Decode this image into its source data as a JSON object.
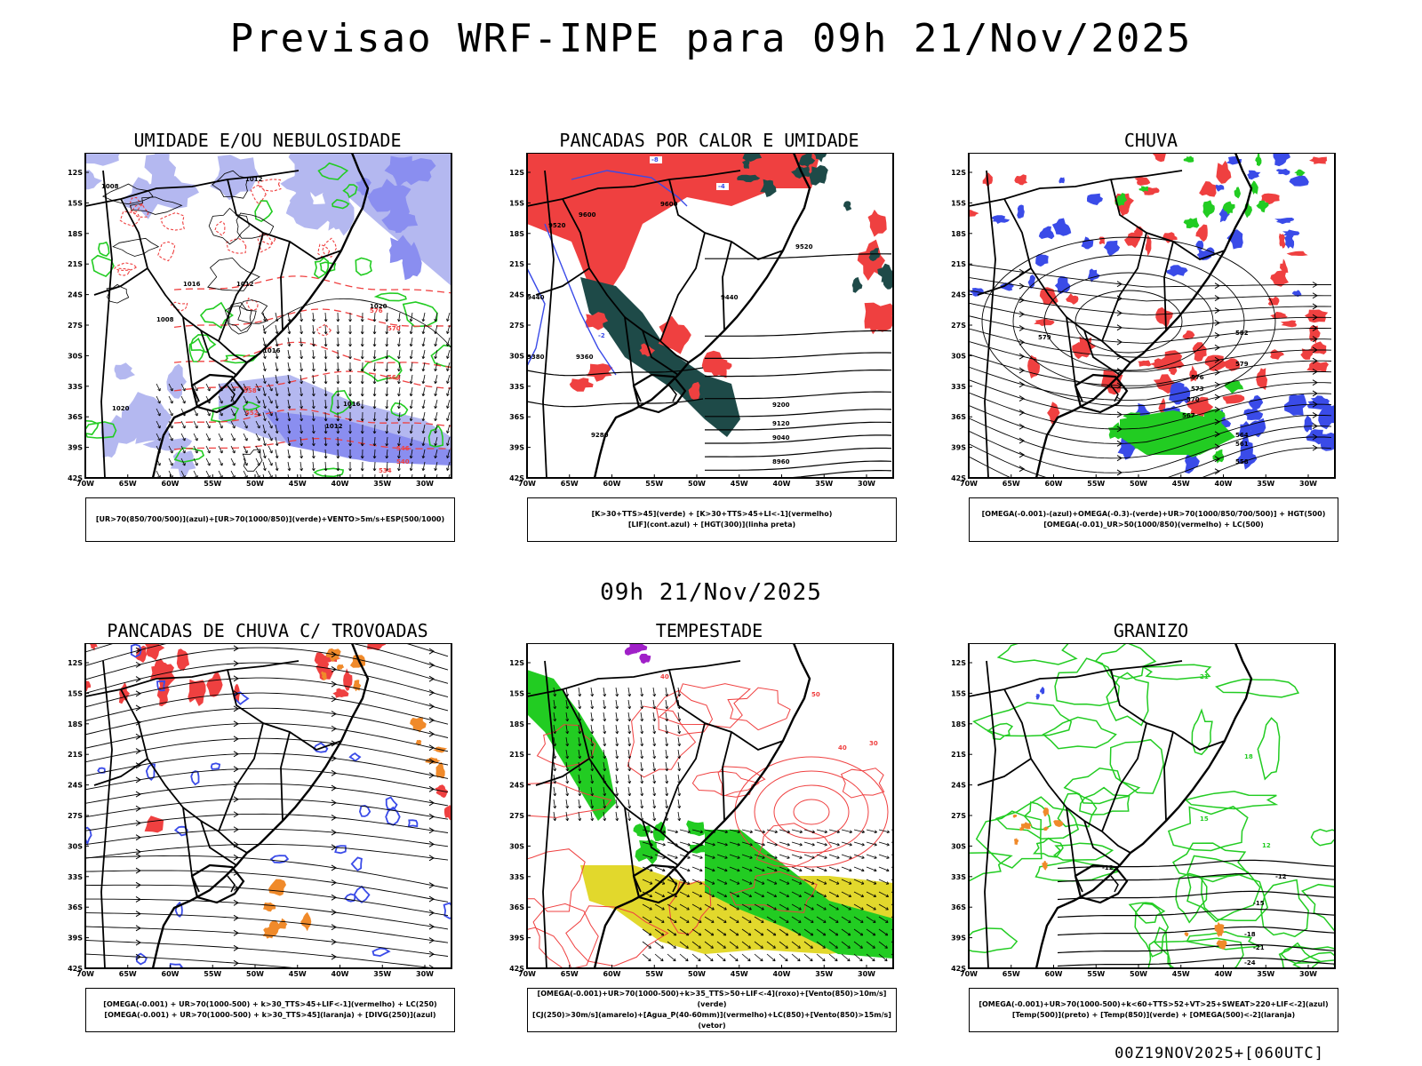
{
  "title": "Previsao WRF-INPE  para 09h 21/Nov/2025",
  "subtitle": "09h 21/Nov/2025",
  "footer": "00Z19NOV2025+[060UTC]",
  "axes": {
    "lat_labels": [
      "12S",
      "15S",
      "18S",
      "21S",
      "24S",
      "27S",
      "30S",
      "33S",
      "36S",
      "39S",
      "42S"
    ],
    "lon_labels": [
      "70W",
      "65W",
      "60W",
      "55W",
      "50W",
      "45W",
      "40W",
      "35W",
      "30W"
    ]
  },
  "colors": {
    "blue": "#3a4be8",
    "light_blue": "#b4b8f0",
    "lavender": "#8a8ef0",
    "green": "#22cc22",
    "red": "#ef4040",
    "dark_teal": "#1e4a48",
    "orange": "#f08a2a",
    "yellow": "#e2d82c",
    "purple": "#a020c8"
  },
  "panels": [
    {
      "id": "umidade",
      "title": "UMIDADE E/OU NEBULOSIDADE",
      "legend": [
        "[UR>70(850/700/500)](azul)+[UR>70(1000/850)](verde)+VENTO>5m/s+ESP(500/1000)"
      ],
      "contour_labels": [
        "1008",
        "1012",
        "1016",
        "1020",
        "1016",
        "1012",
        "1008",
        "1020",
        "1016",
        "1012"
      ],
      "red_labels": [
        "576",
        "570",
        "564",
        "558",
        "552",
        "546",
        "540",
        "534"
      ]
    },
    {
      "id": "pancadas-calor",
      "title": "PANCADAS POR CALOR E UMIDADE",
      "legend": [
        "[K>30+TTS>45](verde) + [K>30+TTS>45+LI<-1](vermelho)",
        "[LIF](cont.azul) + [HGT(300)](linha preta)"
      ],
      "contour_labels": [
        "9600",
        "9520",
        "9440",
        "9600",
        "9520",
        "9440",
        "9380",
        "9360",
        "9280",
        "9200",
        "9120",
        "9040",
        "8960"
      ],
      "blue_labels": [
        "-8",
        "-4",
        "-2"
      ]
    },
    {
      "id": "chuva",
      "title": "CHUVA",
      "legend": [
        "[OMEGA(-0.001)-(azul)+OMEGA(-0.3)-(verde)+UR>70(1000/850/700/500)] + HGT(500)",
        "[OMEGA(-0.01)_UR>50(1000/850)(vermelho) + LC(500)"
      ],
      "contour_labels": [
        "579",
        "582",
        "579",
        "576",
        "573",
        "570",
        "567",
        "564",
        "561",
        "558"
      ]
    },
    {
      "id": "trovoadas",
      "title": "PANCADAS DE CHUVA C/ TROVOADAS",
      "legend": [
        "[OMEGA(-0.001) + UR>70(1000-500) + k>30_TTS>45+LIF<-1](vermelho) + LC(250)",
        "[OMEGA(-0.001) + UR>70(1000-500) + k>30_TTS>45](laranja) + [DIVG(250)](azul)"
      ]
    },
    {
      "id": "tempestade",
      "title": "TEMPESTADE",
      "legend": [
        "[OMEGA(-0.001)+UR>70(1000-500)+k>35_TTS>50+LIF<-4](roxo)+[Vento(850)>10m/s](verde)",
        "[CJ(250)>30m/s](amarelo)+[Agua_P(40-60mm)](vermelho)+LC(850)+[Vento(850)>15m/s](vetor)"
      ],
      "red_labels": [
        "40",
        "50",
        "40",
        "30"
      ]
    },
    {
      "id": "granizo",
      "title": "GRANIZO",
      "legend": [
        "[OMEGA(-0.001)+UR>70(1000-500)+k<60+TTS>52+VT>25+SWEAT>220+LIF<-2](azul)",
        "[Temp(500)](preto) + [Temp(850)](verde) + [OMEGA(500)<-2](laranja)"
      ],
      "contour_labels": [
        "-12",
        "-12",
        "-15",
        "-18",
        "-21",
        "-24"
      ],
      "green_labels": [
        "21",
        "18",
        "15",
        "12"
      ]
    }
  ]
}
